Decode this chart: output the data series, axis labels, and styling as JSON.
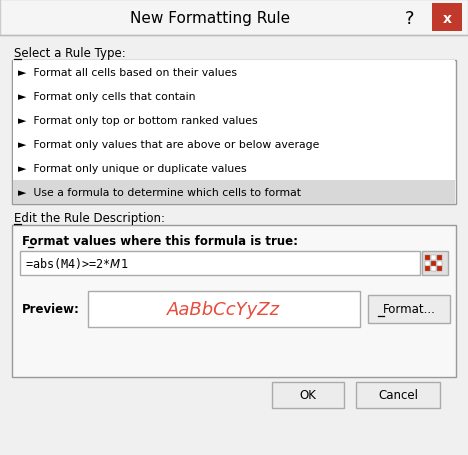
{
  "title": "New Formatting Rule",
  "bg_color": "#f0f0f0",
  "close_btn_color": "#c0392b",
  "section1_label": "Select a Rule Type:",
  "rule_types": [
    "►  Format all cells based on their values",
    "►  Format only cells that contain",
    "►  Format only top or bottom ranked values",
    "►  Format only values that are above or below average",
    "►  Format only unique or duplicate values",
    "►  Use a formula to determine which cells to format"
  ],
  "selected_rule_index": 5,
  "selected_rule_bg": "#d8d8d8",
  "list_bg": "#ffffff",
  "section2_label": "Edit the Rule Description:",
  "formula_label": "Format values where this formula is true:",
  "formula_value": "=abs(M4)>=2*$M$1",
  "preview_label": "Preview:",
  "preview_text": "AaBbCcYyZz",
  "preview_text_color": "#e74c3c",
  "format_btn_label": "Format...",
  "ok_btn_label": "OK",
  "cancel_btn_label": "Cancel"
}
